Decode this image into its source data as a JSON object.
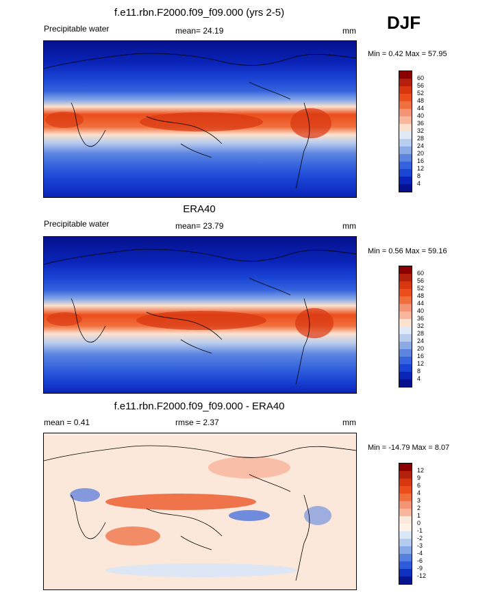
{
  "season_label": "DJF",
  "panels": [
    {
      "title": "f.e11.rbn.F2000.f09_f09.000 (yrs 2-5)",
      "left_label": "Precipitable water",
      "center_label": "mean=  24.19",
      "units": "mm",
      "minmax": "Min =   0.42 Max =   57.95",
      "colorbar": {
        "labels": [
          "60",
          "56",
          "52",
          "48",
          "44",
          "40",
          "36",
          "32",
          "28",
          "24",
          "20",
          "16",
          "12",
          "8",
          "4"
        ],
        "colors": [
          "#8b0000",
          "#b5200d",
          "#d8360f",
          "#eb4e1b",
          "#f0703d",
          "#f59474",
          "#f8b79d",
          "#fce1cf",
          "#dfe9f6",
          "#b9cdee",
          "#8aabe6",
          "#5d85e0",
          "#3463dd",
          "#1a44d4",
          "#0a24b8",
          "#05118e"
        ]
      }
    },
    {
      "title": "ERA40",
      "left_label": "Precipitable water",
      "center_label": "mean=  23.79",
      "units": "mm",
      "minmax": "Min =   0.56 Max =   59.16",
      "colorbar": {
        "labels": [
          "60",
          "56",
          "52",
          "48",
          "44",
          "40",
          "36",
          "32",
          "28",
          "24",
          "20",
          "16",
          "12",
          "8",
          "4"
        ],
        "colors": [
          "#8b0000",
          "#b5200d",
          "#d8360f",
          "#eb4e1b",
          "#f0703d",
          "#f59474",
          "#f8b79d",
          "#fce1cf",
          "#dfe9f6",
          "#b9cdee",
          "#8aabe6",
          "#5d85e0",
          "#3463dd",
          "#1a44d4",
          "#0a24b8",
          "#05118e"
        ]
      }
    },
    {
      "title": "f.e11.rbn.F2000.f09_f09.000 - ERA40",
      "left_label": "mean =   0.41",
      "center_label": "rmse =   2.37",
      "units": "mm",
      "minmax": "Min = -14.79 Max =   8.07",
      "colorbar": {
        "labels": [
          "12",
          "9",
          "6",
          "4",
          "3",
          "2",
          "1",
          "0",
          "-1",
          "-2",
          "-3",
          "-4",
          "-6",
          "-9",
          "-12"
        ],
        "colors": [
          "#8b0000",
          "#b5200d",
          "#d8360f",
          "#eb4e1b",
          "#f0703d",
          "#f59474",
          "#f8b79d",
          "#fce8da",
          "#fdf1e6",
          "#d9e6f6",
          "#b3cbee",
          "#86a8e6",
          "#5680de",
          "#2d5bd9",
          "#0f2fc0",
          "#061590"
        ]
      }
    }
  ]
}
